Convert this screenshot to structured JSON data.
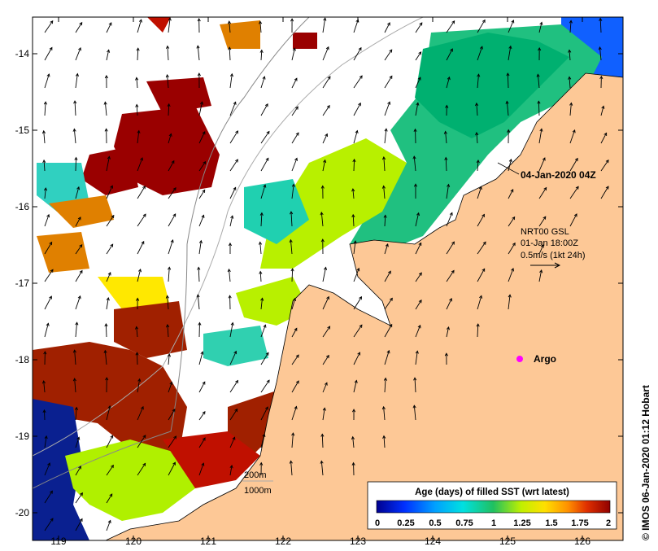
{
  "map": {
    "valid_time": "04-Jan-2020 04Z",
    "credit": "© IMOS 06-Jan-2020 01:12 Hobart",
    "lon_ticks": [
      "119",
      "120",
      "121",
      "122",
      "123",
      "124",
      "125",
      "126"
    ],
    "lat_ticks": [
      "-14",
      "-15",
      "-16",
      "-17",
      "-18",
      "-19",
      "-20"
    ],
    "current_info": {
      "line1": "NRT00 GSL",
      "line2": "01-Jan 18:00Z",
      "line3": "0.5m/s (1kt 24h)"
    },
    "argo_label": "Argo",
    "isobaths": {
      "a": "200m",
      "b": "1000m"
    },
    "colorbar": {
      "title": "Age (days) of filled SST (wrt latest)",
      "labels": [
        "0",
        "0.25",
        "0.5",
        "0.75",
        "1",
        "1.25",
        "1.5",
        "1.75",
        "2"
      ]
    },
    "colors": {
      "land": "#fdc896",
      "ocean": "#ffffff",
      "argo": "#ff00ff"
    }
  }
}
